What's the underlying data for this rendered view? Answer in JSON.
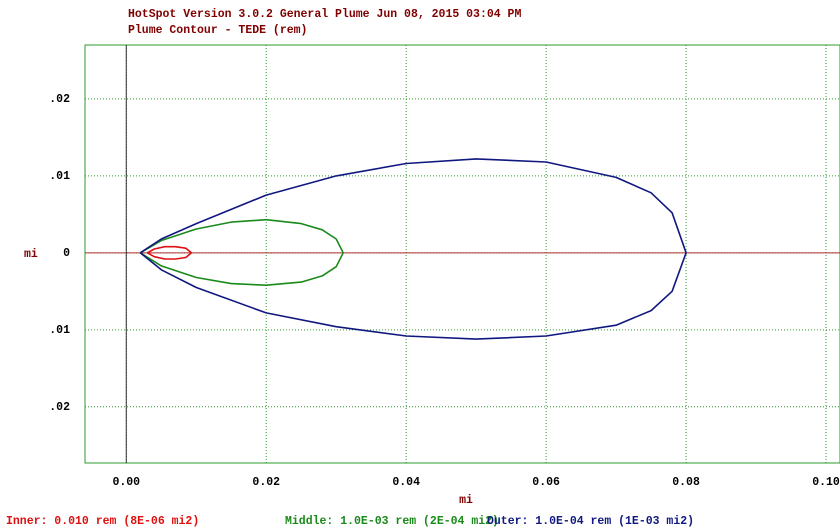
{
  "chart_data": {
    "type": "line",
    "title": "HotSpot  Version 3.0.2 General Plume  Jun 08, 2015 03:04 PM",
    "subtitle": "Plume Contour  - TEDE (rem)",
    "x_label": "mi",
    "y_label": "mi",
    "xlim": [
      -0.0059,
      0.102
    ],
    "ylim": [
      -0.0273,
      0.027
    ],
    "xticks": [
      {
        "value": 0,
        "label": "0.00"
      },
      {
        "value": 0.02,
        "label": "0.02"
      },
      {
        "value": 0.04,
        "label": "0.04"
      },
      {
        "value": 0.06,
        "label": "0.06"
      },
      {
        "value": 0.08,
        "label": "0.08"
      },
      {
        "value": 0.1,
        "label": "0.10"
      }
    ],
    "yticks": [
      {
        "value": -0.02,
        "label": ".02"
      },
      {
        "value": -0.01,
        "label": ".01"
      },
      0,
      {
        "value": 0.01,
        "label": ".01"
      },
      {
        "value": 0.02,
        "label": ".02"
      }
    ],
    "grid": true,
    "series": [
      {
        "name": "Inner: 0.010 rem (8E-06 mi2)",
        "color": "#e01010",
        "x": [
          0.003,
          0.004,
          0.0055,
          0.007,
          0.0085,
          0.0093,
          0.0085,
          0.007,
          0.0055,
          0.004,
          0.003
        ],
        "y": [
          0,
          0.0005,
          0.0008,
          0.0008,
          0.0006,
          0,
          -0.0006,
          -0.0008,
          -0.0008,
          -0.0005,
          0
        ]
      },
      {
        "name": "Middle: 1.0E-03 rem (2E-04 mi2)",
        "color": "#1a8a1a",
        "x": [
          0.002,
          0.005,
          0.01,
          0.015,
          0.02,
          0.025,
          0.028,
          0.03,
          0.031,
          0.03,
          0.028,
          0.025,
          0.02,
          0.015,
          0.01,
          0.005,
          0.002
        ],
        "y": [
          0,
          0.0016,
          0.0031,
          0.004,
          0.0043,
          0.0038,
          0.003,
          0.0018,
          0,
          -0.0018,
          -0.003,
          -0.0038,
          -0.0042,
          -0.004,
          -0.0032,
          -0.0017,
          0
        ]
      },
      {
        "name": "Outer: 1.0E-04 rem (1E-03 mi2)",
        "color": "#101880",
        "x": [
          0.002,
          0.005,
          0.01,
          0.02,
          0.03,
          0.04,
          0.05,
          0.06,
          0.07,
          0.075,
          0.078,
          0.08,
          0.078,
          0.075,
          0.07,
          0.06,
          0.05,
          0.04,
          0.03,
          0.02,
          0.01,
          0.005,
          0.002
        ],
        "y": [
          0,
          0.0018,
          0.0038,
          0.0075,
          0.01,
          0.0116,
          0.0122,
          0.0118,
          0.0098,
          0.0078,
          0.0052,
          0,
          -0.005,
          -0.0075,
          -0.0094,
          -0.0108,
          -0.0112,
          -0.0108,
          -0.0096,
          -0.0078,
          -0.0045,
          -0.0022,
          0
        ]
      }
    ]
  }
}
